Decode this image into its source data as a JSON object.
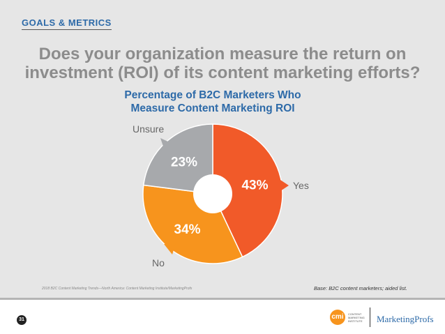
{
  "header": {
    "section": "GOALS & METRICS",
    "question": "Does your organization measure the return on investment (ROI) of its content marketing efforts?"
  },
  "chart_data": {
    "type": "pie",
    "title": "Percentage of B2C Marketers Who Measure Content Marketing ROI",
    "title_lines": [
      "Percentage of B2C Marketers Who",
      "Measure Content Marketing ROI"
    ],
    "slices": [
      {
        "label": "Yes",
        "value": 43,
        "display": "43%",
        "color": "#f15a29"
      },
      {
        "label": "No",
        "value": 34,
        "display": "34%",
        "color": "#f7941d"
      },
      {
        "label": "Unsure",
        "value": 23,
        "display": "23%",
        "color": "#a7a9ac"
      }
    ]
  },
  "footer": {
    "source": "2018 B2C Content Marketing Trends—North America: Content Marketing Institute/MarketingProfs",
    "base": "Base: B2C content marketers; aided list.",
    "page": "31",
    "cmi_logo": "cmi",
    "cmi_text": "CONTENT MARKETING INSTITUTE",
    "mp_logo": "MarketingProfs"
  }
}
